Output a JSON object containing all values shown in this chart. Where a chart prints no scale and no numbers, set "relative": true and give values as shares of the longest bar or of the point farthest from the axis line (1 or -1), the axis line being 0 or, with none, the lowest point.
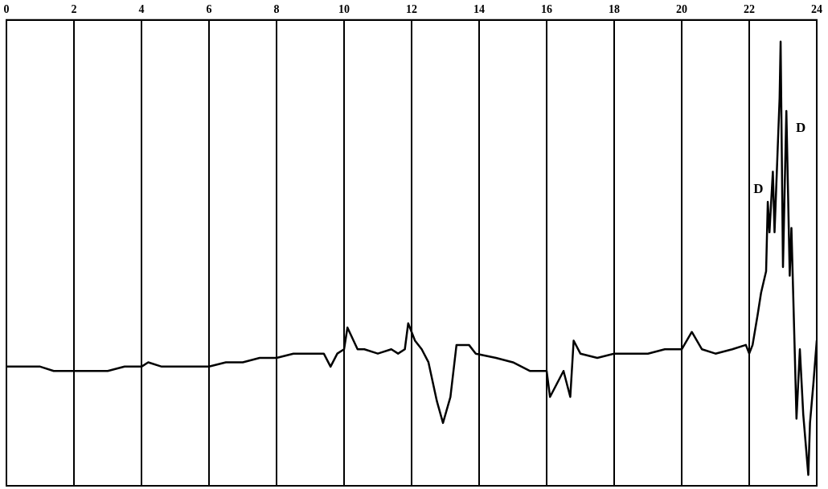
{
  "chart_data": {
    "type": "line",
    "relative": true,
    "color": "#000000",
    "marker": "none",
    "line_style": "solid",
    "grid": "x",
    "legend": false,
    "tick_labels": "x",
    "xlim": [
      0,
      24
    ],
    "xticks": [
      0,
      2,
      4,
      6,
      8,
      10,
      12,
      14,
      16,
      18,
      20,
      22,
      24
    ],
    "x": [
      0,
      0.3,
      0.8,
      1,
      1.4,
      1.8,
      2,
      2.4,
      3,
      3.5,
      4,
      4.2,
      4.6,
      5,
      5.5,
      6,
      6.5,
      7,
      7.5,
      8,
      8.5,
      9,
      9.4,
      9.6,
      9.8,
      10,
      10.1,
      10.4,
      10.6,
      11,
      11.4,
      11.6,
      11.8,
      11.9,
      12.1,
      12.3,
      12.5,
      12.75,
      12.93,
      13.15,
      13.33,
      13.7,
      13.9,
      14.5,
      15,
      15.5,
      16,
      16.1,
      16.5,
      16.7,
      16.8,
      17,
      17.5,
      18,
      18.5,
      19,
      19.5,
      20,
      20.3,
      20.6,
      21,
      21.5,
      21.9,
      22,
      22.1,
      22.25,
      22.35,
      22.5,
      22.55,
      22.6,
      22.7,
      22.75,
      22.9,
      22.93,
      23,
      23.1,
      23.2,
      23.25,
      23.35,
      23.4,
      23.5,
      23.6,
      23.75,
      23.8,
      23.9,
      24
    ],
    "values": [
      0.25,
      0.25,
      0.25,
      0.25,
      0.24,
      0.24,
      0.24,
      0.24,
      0.24,
      0.25,
      0.25,
      0.26,
      0.25,
      0.25,
      0.25,
      0.25,
      0.26,
      0.26,
      0.27,
      0.27,
      0.28,
      0.28,
      0.28,
      0.25,
      0.28,
      0.29,
      0.34,
      0.29,
      0.29,
      0.28,
      0.29,
      0.28,
      0.29,
      0.35,
      0.31,
      0.29,
      0.26,
      0.17,
      0.12,
      0.18,
      0.3,
      0.3,
      0.28,
      0.27,
      0.26,
      0.24,
      0.24,
      0.18,
      0.24,
      0.18,
      0.31,
      0.28,
      0.27,
      0.28,
      0.28,
      0.28,
      0.29,
      0.29,
      0.33,
      0.29,
      0.28,
      0.29,
      0.3,
      0.28,
      0.3,
      0.37,
      0.42,
      0.47,
      0.63,
      0.56,
      0.7,
      0.56,
      0.87,
      1.0,
      0.48,
      0.84,
      0.46,
      0.57,
      0.28,
      0.13,
      0.29,
      0.14,
      0,
      0.12,
      0.21,
      0.31
    ],
    "annotations": [
      {
        "text": "D",
        "x": 22.7,
        "y": 0.7
      },
      {
        "text": "D",
        "x": 23.1,
        "y": 0.84
      }
    ]
  }
}
